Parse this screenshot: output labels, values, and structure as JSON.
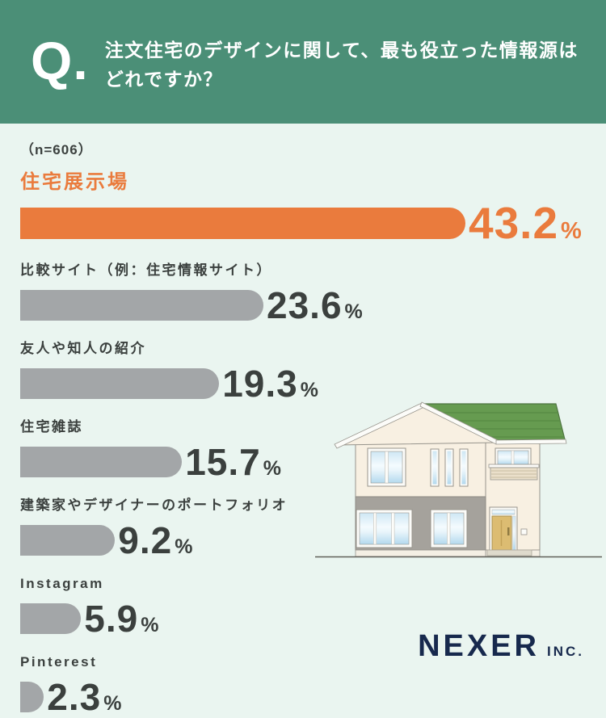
{
  "header": {
    "q_mark": "Q.",
    "question_line1": "注文住宅のデザインに関して、最も役立った情報源は",
    "question_line2": "どれですか？"
  },
  "survey": {
    "sample_size": "（n=606）"
  },
  "chart_data": {
    "type": "bar",
    "orientation": "horizontal",
    "unit": "%",
    "title": "注文住宅のデザインに関して、最も役立った情報源はどれですか？",
    "sample_label": "n=606",
    "categories": [
      "住宅展示場",
      "比較サイト（例：住宅情報サイト）",
      "友人や知人の紹介",
      "住宅雑誌",
      "建築家やデザイナーのポートフォリオ",
      "Instagram",
      "Pinterest"
    ],
    "values": [
      43.2,
      23.6,
      19.3,
      15.7,
      9.2,
      5.9,
      2.3
    ],
    "xlim": [
      0,
      45
    ],
    "legend": "none",
    "grid": false,
    "items": [
      {
        "label": "住宅展示場",
        "value": "43.2",
        "highlight": true
      },
      {
        "label": "比較サイト（例：住宅情報サイト）",
        "value": "23.6",
        "highlight": false
      },
      {
        "label": "友人や知人の紹介",
        "value": "19.3",
        "highlight": false
      },
      {
        "label": "住宅雑誌",
        "value": "15.7",
        "highlight": false
      },
      {
        "label": "建築家やデザイナーのポートフォリオ",
        "value": "9.2",
        "highlight": false
      },
      {
        "label": "Instagram",
        "value": "5.9",
        "highlight": false
      },
      {
        "label": "Pinterest",
        "value": "2.3",
        "highlight": false
      }
    ]
  },
  "colors": {
    "background": "#eaf5f0",
    "header_green": "#4b8f77",
    "accent_orange": "#ea7b3d",
    "bar_gray": "#a3a6a8",
    "text_dark": "#3b403e",
    "logo_navy": "#17294d",
    "roof_green": "#669b50"
  },
  "illustration": {
    "name": "two-story-house"
  },
  "footer": {
    "brand": "NEXER",
    "brand_suffix": "INC."
  }
}
